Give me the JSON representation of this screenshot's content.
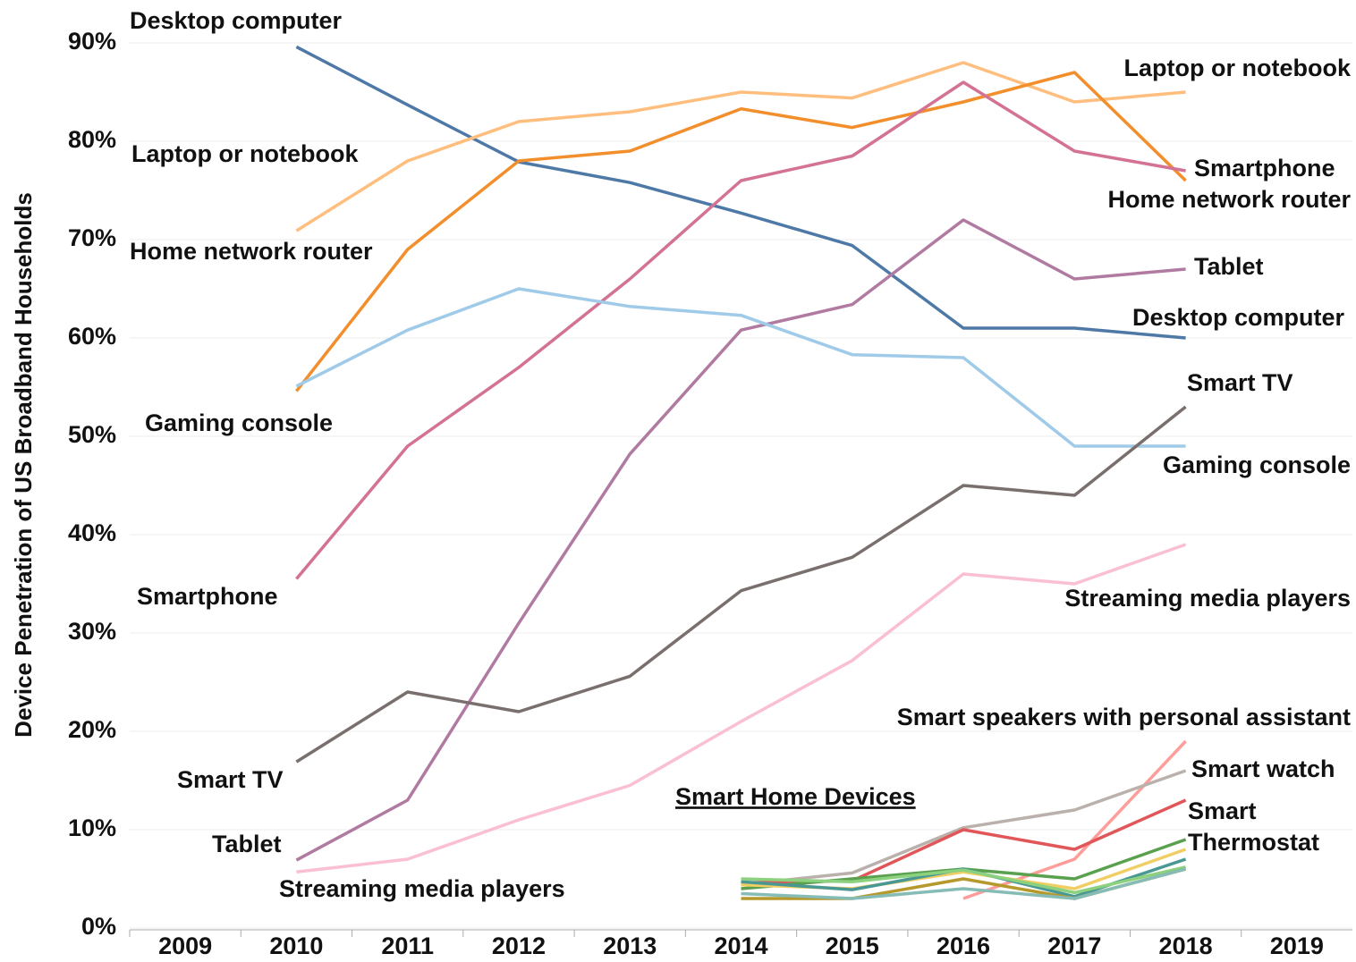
{
  "chart_data": {
    "type": "line",
    "y_label": "Device Penetration of US Broadband Households",
    "annotation": "Smart  Home Devices",
    "x": [
      2010,
      2011,
      2012,
      2013,
      2014,
      2015,
      2016,
      2017,
      2018
    ],
    "xlim": [
      2008.5,
      2019.5
    ],
    "xticks": [
      2009,
      2010,
      2011,
      2012,
      2013,
      2014,
      2015,
      2016,
      2017,
      2018,
      2019
    ],
    "ylim": [
      -3.5,
      91
    ],
    "yticks": [
      {
        "value": 0,
        "label": "0%"
      },
      {
        "value": 10,
        "label": "10%"
      },
      {
        "value": 20,
        "label": "20%"
      },
      {
        "value": 30,
        "label": "30%"
      },
      {
        "value": 40,
        "label": "40%"
      },
      {
        "value": 50,
        "label": "50%"
      },
      {
        "value": 60,
        "label": "60%"
      },
      {
        "value": 70,
        "label": "70%"
      },
      {
        "value": 80,
        "label": "80%"
      },
      {
        "value": 90,
        "label": "90%"
      }
    ],
    "grid": true,
    "series": [
      {
        "name": "Desktop computer",
        "color": "#4e79a7",
        "values": [
          89.6,
          83.7,
          77.9,
          75.8,
          72.7,
          69.4,
          61,
          61,
          60
        ]
      },
      {
        "name": "Laptop or notebook",
        "color": "#ffbe7d",
        "values": [
          70.9,
          78,
          82,
          83,
          85,
          84.4,
          88,
          84,
          85
        ]
      },
      {
        "name": "Home network router",
        "color": "#f28e2b",
        "values": [
          54.6,
          69,
          78,
          79,
          83.3,
          81.4,
          84,
          87,
          76
        ]
      },
      {
        "name": "Smartphone",
        "color": "#d37295",
        "values": [
          35.5,
          49,
          57,
          66,
          76,
          78.5,
          86,
          79,
          77
        ]
      },
      {
        "name": "Tablet",
        "color": "#b07aa1",
        "values": [
          6.9,
          13,
          31,
          48.2,
          60.8,
          63.4,
          72,
          66,
          67
        ]
      },
      {
        "name": "Gaming console",
        "color": "#a0cbe8",
        "values": [
          55.1,
          60.8,
          65,
          63.2,
          62.3,
          58.3,
          58,
          49,
          49
        ]
      },
      {
        "name": "Smart TV",
        "color": "#79706e",
        "values": [
          16.9,
          24,
          22,
          25.6,
          34.3,
          37.7,
          45,
          44,
          53
        ]
      },
      {
        "name": "Streaming media players",
        "color": "#fabfd2",
        "values": [
          5.7,
          7,
          11,
          14.5,
          21,
          27.2,
          36,
          35,
          39
        ]
      },
      {
        "name": "Smart speakers with personal assistant",
        "color": "#ff9d9a",
        "values": [
          null,
          null,
          null,
          null,
          null,
          null,
          3,
          7,
          19
        ]
      },
      {
        "name": "Smart watch",
        "color": "#bab0ac",
        "values": [
          null,
          null,
          null,
          null,
          4.4,
          5.6,
          10.2,
          12,
          16
        ]
      },
      {
        "name": "Smart Thermostat",
        "color": "#e15759",
        "values": [
          null,
          null,
          null,
          null,
          4.6,
          4.8,
          10,
          8,
          13
        ]
      },
      {
        "color": "#59a14f",
        "values": [
          null,
          null,
          null,
          null,
          4,
          5,
          6,
          5,
          9
        ]
      },
      {
        "color": "#f1ce63",
        "values": [
          null,
          null,
          null,
          null,
          4.4,
          4,
          5.7,
          4,
          8
        ]
      },
      {
        "color": "#499894",
        "values": [
          null,
          null,
          null,
          null,
          4.7,
          3.9,
          6,
          3.2,
          7
        ]
      },
      {
        "color": "#8cd17d",
        "values": [
          null,
          null,
          null,
          null,
          5,
          4.7,
          5.9,
          3.6,
          6.2
        ]
      },
      {
        "color": "#b6992d",
        "values": [
          null,
          null,
          null,
          null,
          3,
          3,
          5,
          3,
          6
        ]
      },
      {
        "color": "#86bcb6",
        "values": [
          null,
          null,
          null,
          null,
          3.5,
          3,
          4,
          3,
          6
        ]
      }
    ]
  }
}
